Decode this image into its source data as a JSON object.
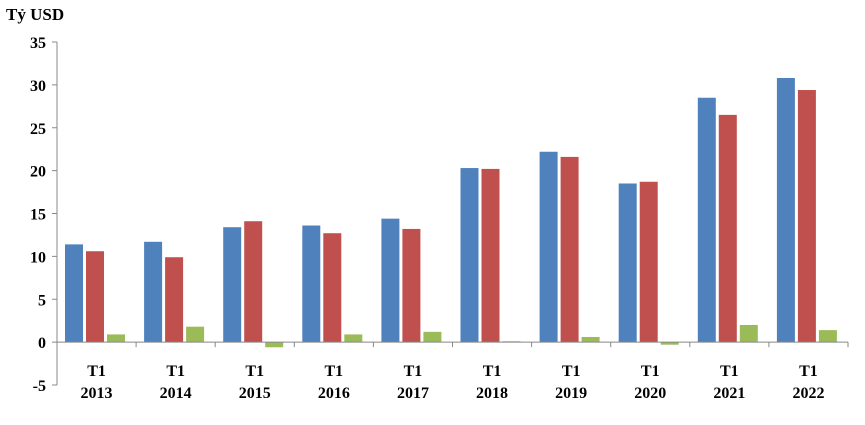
{
  "chart_data": {
    "type": "bar",
    "unit_label": "Tỷ USD",
    "categories": [
      [
        "T1",
        "2013"
      ],
      [
        "T1",
        "2014"
      ],
      [
        "T1",
        "2015"
      ],
      [
        "T1",
        "2016"
      ],
      [
        "T1",
        "2017"
      ],
      [
        "T1",
        "2018"
      ],
      [
        "T1",
        "2019"
      ],
      [
        "T1",
        "2020"
      ],
      [
        "T1",
        "2021"
      ],
      [
        "T1",
        "2022"
      ]
    ],
    "series": [
      {
        "color": "#4F81BD",
        "values": [
          11.4,
          11.7,
          13.4,
          13.6,
          14.4,
          20.3,
          22.2,
          18.5,
          28.5,
          30.8
        ]
      },
      {
        "color": "#C0504D",
        "values": [
          10.6,
          9.9,
          14.1,
          12.7,
          13.2,
          20.2,
          21.6,
          18.7,
          26.5,
          29.4
        ]
      },
      {
        "color": "#9BBB59",
        "values": [
          0.9,
          1.8,
          -0.6,
          0.9,
          1.2,
          0.1,
          0.6,
          -0.3,
          2.0,
          1.4
        ]
      }
    ],
    "ylim": [
      -5,
      35
    ],
    "yticks": [
      35,
      30,
      25,
      20,
      15,
      10,
      5,
      0,
      -5
    ],
    "grid": false,
    "legend": "none"
  }
}
